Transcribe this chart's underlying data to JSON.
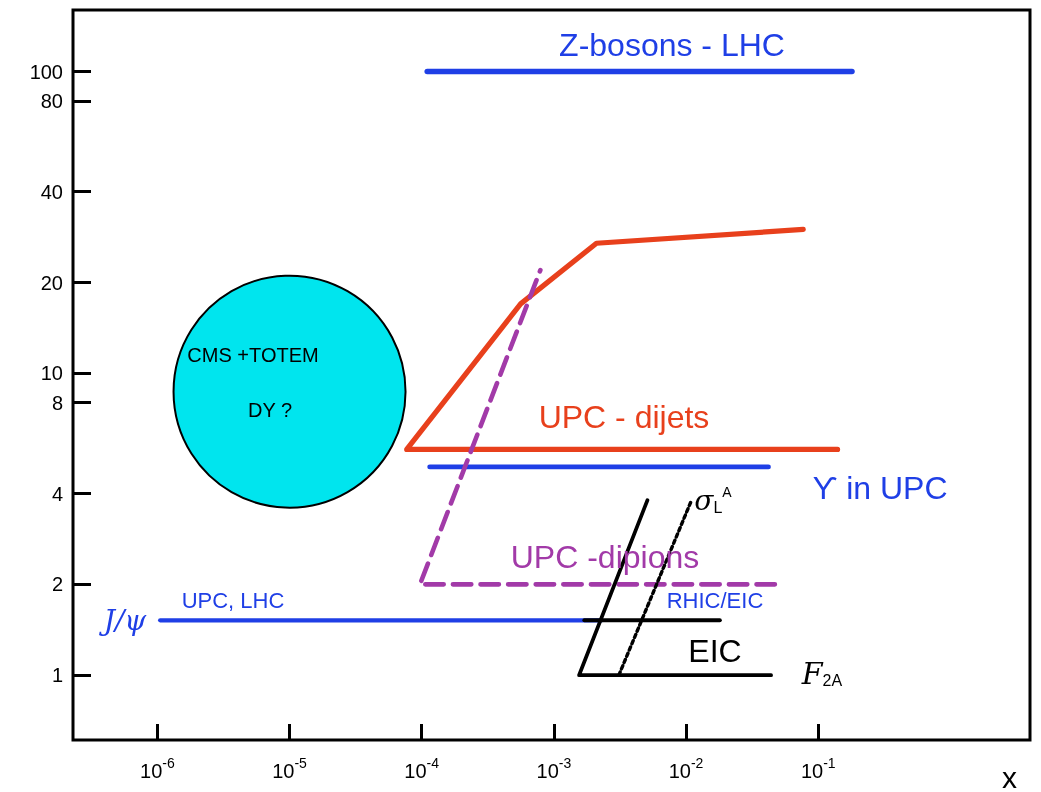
{
  "chart_data": {
    "type": "line",
    "log": "xy",
    "marker": "none",
    "line_style": "solid",
    "xlabel": "x",
    "xlim": [
      2.3e-07,
      4
    ],
    "ylim": [
      0.61,
      160
    ],
    "xticks": [
      {
        "value": 1e-06,
        "label": "10$^{-6}$"
      },
      {
        "value": 1e-05,
        "label": "10$^{-5}$"
      },
      {
        "value": 0.0001,
        "label": "10$^{-4}$"
      },
      {
        "value": 0.001,
        "label": "10$^{-3}$"
      },
      {
        "value": 0.01,
        "label": "10$^{-2}$"
      },
      {
        "value": 0.1,
        "label": "10$^{-1}$"
      }
    ],
    "yticks": [
      1,
      2,
      4,
      8,
      10,
      20,
      40,
      80,
      100
    ],
    "series": [
      {
        "color": "#1f3fe6",
        "x": [
          0.00011,
          0.18
        ],
        "values": [
          100,
          100
        ]
      },
      {
        "color": "#e8401c",
        "x": [
          0.14,
          7.7e-05,
          0.00056,
          0.0021,
          0.077
        ],
        "values": [
          5.6,
          5.6,
          17,
          27,
          30
        ]
      },
      {
        "color": "#1f3fe6",
        "x": [
          0.000115,
          0.042
        ],
        "values": [
          4.9,
          4.9
        ]
      },
      {
        "color": "#a23aa8",
        "line_style": "dashed",
        "x": [
          0.047,
          9.7e-05,
          0.00079
        ],
        "values": [
          2,
          2,
          22
        ]
      },
      {
        "color": "#1f3fe6",
        "x": [
          1.05e-06,
          0.0023
        ],
        "values": [
          1.52,
          1.52
        ]
      },
      {
        "color": "#000000",
        "x": [
          0.0017,
          0.018
        ],
        "values": [
          1.52,
          1.52
        ]
      },
      {
        "color": "#000000",
        "x": [
          0.044,
          0.00155,
          0.0051
        ],
        "values": [
          1,
          1,
          3.8
        ]
      },
      {
        "color": "#000000",
        "line_style": "dotted",
        "x": [
          0.0031,
          0.011
        ],
        "values": [
          1,
          3.8
        ]
      },
      {
        "type": "bubble",
        "marker": "circle",
        "color": "#00e5ee",
        "x": [
          1e-05
        ],
        "values": [
          8.7
        ],
        "sizes": [
          1
        ]
      }
    ],
    "annotations": [
      "Z-bosons - LHC",
      "UPC - dijets",
      "ϒ in UPC",
      "UPC -dipions",
      "J/ψ",
      "UPC, LHC",
      "RHIC/EIC",
      "EIC",
      "F$_{2A}$",
      "σ$_{L}$$^{A}$",
      "CMS +TOTEM",
      "DY ?"
    ]
  }
}
